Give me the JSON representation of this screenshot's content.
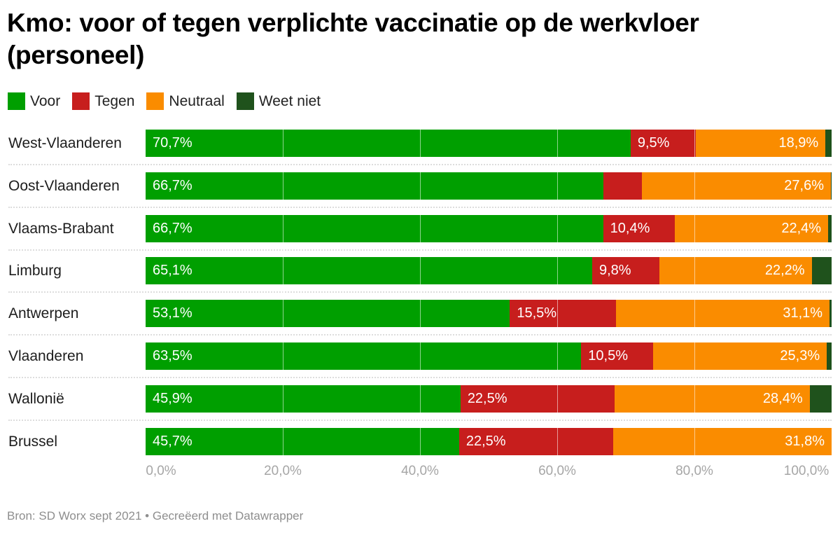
{
  "chart_data": {
    "type": "bar",
    "orientation": "horizontal",
    "stacked": true,
    "title": "Kmo: voor of tegen verplichte vaccinatie op de werkvloer (personeel)",
    "categories": [
      "West-Vlaanderen",
      "Oost-Vlaanderen",
      "Vlaams-Brabant",
      "Limburg",
      "Antwerpen",
      "Vlaanderen",
      "Wallonië",
      "Brussel"
    ],
    "series": [
      {
        "name": "Voor",
        "color": "#009f00",
        "values": [
          70.7,
          66.7,
          66.7,
          65.1,
          53.1,
          63.5,
          45.9,
          45.7
        ],
        "labels": [
          "70,7%",
          "66,7%",
          "66,7%",
          "65,1%",
          "53,1%",
          "63,5%",
          "45,9%",
          "45,7%"
        ]
      },
      {
        "name": "Tegen",
        "color": "#c71e1d",
        "values": [
          9.5,
          5.6,
          10.4,
          9.8,
          15.5,
          10.5,
          22.5,
          22.5
        ],
        "labels": [
          "9,5%",
          "",
          "10,4%",
          "9,8%",
          "15,5%",
          "10,5%",
          "22,5%",
          "22,5%"
        ]
      },
      {
        "name": "Neutraal",
        "color": "#fa8c00",
        "values": [
          18.9,
          27.6,
          22.4,
          22.2,
          31.1,
          25.3,
          28.4,
          31.8
        ],
        "labels": [
          "18,9%",
          "27,6%",
          "22,4%",
          "22,2%",
          "31,1%",
          "25,3%",
          "28,4%",
          "31,8%"
        ]
      },
      {
        "name": "Weet niet",
        "color": "#1f521c",
        "values": [
          0.9,
          0.1,
          0.5,
          2.9,
          0.3,
          0.7,
          3.2,
          0.0
        ],
        "labels": [
          "",
          "",
          "",
          "",
          "",
          "",
          "",
          ""
        ]
      }
    ],
    "xlabel": "",
    "ylabel": "",
    "xlim": [
      0,
      100
    ],
    "xticks": [
      0,
      20,
      40,
      60,
      80,
      100
    ],
    "xtick_labels": [
      "0,0%",
      "20,0%",
      "40,0%",
      "60,0%",
      "80,0%",
      "100,0%"
    ],
    "grid": true,
    "legend": "top-left"
  },
  "header": {
    "title": "Kmo: voor of tegen verplichte vaccinatie op de werkvloer (personeel)"
  },
  "legend": [
    {
      "label": "Voor",
      "color": "#009f00"
    },
    {
      "label": "Tegen",
      "color": "#c71e1d"
    },
    {
      "label": "Neutraal",
      "color": "#fa8c00"
    },
    {
      "label": "Weet niet",
      "color": "#1f521c"
    }
  ],
  "footer": {
    "text": "Bron: SD Worx sept 2021 • Gecreëerd met Datawrapper"
  }
}
